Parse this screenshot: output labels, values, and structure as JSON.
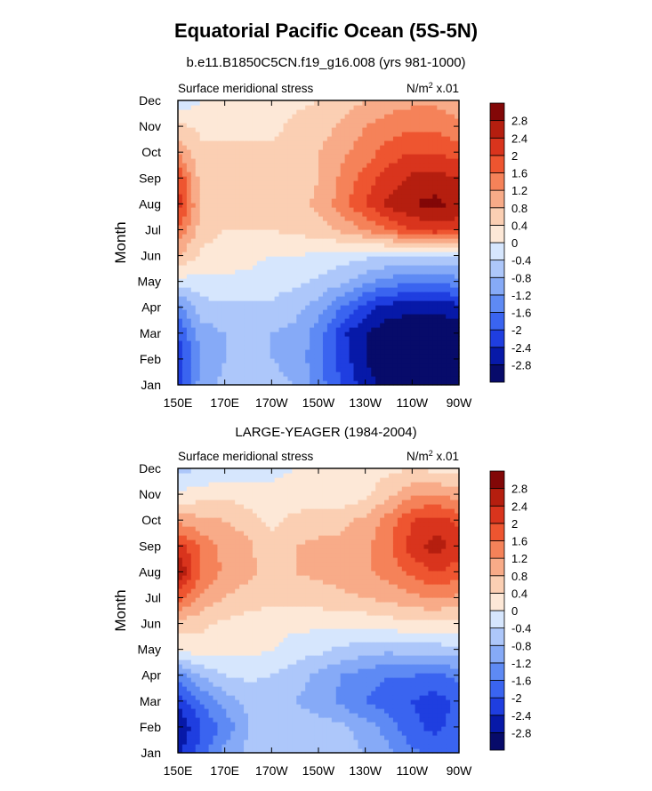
{
  "title": "Equatorial Pacific Ocean (5S-5N)",
  "chart_data": {
    "type": "heatmap",
    "ylabel": "Month",
    "x_tick_labels": [
      "150E",
      "170E",
      "170W",
      "150W",
      "130W",
      "110W",
      "90W"
    ],
    "y_tick_labels": [
      "Jan",
      "Feb",
      "Mar",
      "Apr",
      "May",
      "Jun",
      "Jul",
      "Aug",
      "Sep",
      "Oct",
      "Nov",
      "Dec"
    ],
    "variable": "Surface meridional stress",
    "units_prefix": "N/m",
    "units_exp": "2",
    "units_suffix": " x.01",
    "colorbar": {
      "levels": [
        "-2.8",
        "-2.4",
        "-2",
        "-1.6",
        "-1.2",
        "-0.8",
        "-0.4",
        "0",
        "0.4",
        "0.8",
        "1.2",
        "1.6",
        "2",
        "2.4",
        "2.8"
      ],
      "colors": [
        "#070b6a",
        "#0719a8",
        "#1f3ee0",
        "#3a64f0",
        "#5e8af4",
        "#86aaf7",
        "#adc7fa",
        "#d6e6fd",
        "#fde8d7",
        "#fbcfb3",
        "#f8ab88",
        "#f58259",
        "#ee5530",
        "#d9341d",
        "#b51e0f",
        "#820707"
      ]
    },
    "panels": [
      {
        "name": "b.e11.B1850C5CN.f19_g16.008 (yrs 981-1000)",
        "lon": [
          "150E",
          "160E",
          "170E",
          "180",
          "170W",
          "160W",
          "150W",
          "140W",
          "130W",
          "120W",
          "110W",
          "100W",
          "90W"
        ],
        "months": [
          "Jan",
          "Feb",
          "Mar",
          "Apr",
          "May",
          "Jun",
          "Jul",
          "Aug",
          "Sep",
          "Oct",
          "Nov",
          "Dec"
        ],
        "values": [
          [
            -2.2,
            -1.0,
            -0.7,
            -0.7,
            -0.7,
            -0.8,
            -1.4,
            -2.0,
            -2.6,
            -3.0,
            -3.1,
            -3.1,
            -3.0
          ],
          [
            -2.3,
            -1.1,
            -0.8,
            -0.8,
            -0.8,
            -0.9,
            -1.5,
            -2.2,
            -2.8,
            -3.1,
            -3.2,
            -3.2,
            -3.1
          ],
          [
            -2.0,
            -1.0,
            -0.8,
            -0.8,
            -0.8,
            -0.9,
            -1.4,
            -2.3,
            -2.8,
            -3.1,
            -3.1,
            -3.1,
            -3.0
          ],
          [
            -1.4,
            -0.6,
            -0.5,
            -0.5,
            -0.5,
            -0.7,
            -1.0,
            -1.6,
            -2.2,
            -2.6,
            -2.7,
            -2.7,
            -2.6
          ],
          [
            -0.2,
            -0.1,
            -0.1,
            -0.1,
            -0.2,
            -0.3,
            -0.5,
            -0.7,
            -1.1,
            -1.4,
            -1.5,
            -1.5,
            -1.4
          ],
          [
            0.8,
            0.3,
            0.2,
            0.1,
            0.0,
            0.0,
            -0.1,
            -0.2,
            -0.3,
            -0.4,
            -0.5,
            -0.5,
            -0.4
          ],
          [
            1.6,
            0.6,
            0.4,
            0.4,
            0.4,
            0.5,
            0.6,
            0.9,
            1.2,
            1.6,
            2.0,
            2.2,
            2.1
          ],
          [
            2.2,
            0.7,
            0.5,
            0.5,
            0.5,
            0.6,
            0.9,
            1.4,
            2.0,
            2.5,
            2.8,
            2.9,
            2.7
          ],
          [
            2.0,
            0.6,
            0.5,
            0.5,
            0.5,
            0.6,
            0.8,
            1.3,
            1.8,
            2.2,
            2.5,
            2.6,
            2.4
          ],
          [
            1.2,
            0.5,
            0.5,
            0.5,
            0.5,
            0.6,
            0.8,
            1.1,
            1.4,
            1.8,
            2.0,
            2.0,
            1.8
          ],
          [
            0.5,
            0.3,
            0.3,
            0.3,
            0.3,
            0.5,
            0.6,
            0.9,
            1.2,
            1.4,
            1.5,
            1.5,
            1.3
          ],
          [
            -0.3,
            0.0,
            0.1,
            0.2,
            0.2,
            0.3,
            0.4,
            0.6,
            0.8,
            1.0,
            1.1,
            1.1,
            1.0
          ]
        ]
      },
      {
        "name": "LARGE-YEAGER (1984-2004)",
        "lon": [
          "150E",
          "160E",
          "170E",
          "180",
          "170W",
          "160W",
          "150W",
          "140W",
          "130W",
          "120W",
          "110W",
          "100W",
          "90W"
        ],
        "months": [
          "Jan",
          "Feb",
          "Mar",
          "Apr",
          "May",
          "Jun",
          "Jul",
          "Aug",
          "Sep",
          "Oct",
          "Nov",
          "Dec"
        ],
        "values": [
          [
            -2.5,
            -1.8,
            -1.0,
            -0.7,
            -0.6,
            -0.6,
            -0.6,
            -0.6,
            -0.8,
            -1.1,
            -1.5,
            -1.8,
            -1.6
          ],
          [
            -2.8,
            -2.0,
            -1.5,
            -0.8,
            -0.6,
            -0.6,
            -0.6,
            -0.7,
            -1.0,
            -1.4,
            -1.9,
            -2.1,
            -1.8
          ],
          [
            -2.3,
            -1.6,
            -1.0,
            -0.7,
            -0.7,
            -0.8,
            -1.0,
            -1.3,
            -1.6,
            -1.8,
            -2.0,
            -2.2,
            -1.9
          ],
          [
            -1.4,
            -0.8,
            -0.4,
            -0.3,
            -0.4,
            -0.6,
            -0.9,
            -1.2,
            -1.4,
            -1.6,
            -1.6,
            -1.7,
            -1.5
          ],
          [
            0.1,
            0.2,
            0.1,
            0.1,
            0.0,
            -0.2,
            -0.3,
            -0.5,
            -0.6,
            -0.7,
            -0.6,
            -0.6,
            -0.5
          ],
          [
            0.6,
            0.5,
            0.3,
            0.2,
            0.2,
            0.1,
            0.1,
            0.1,
            0.1,
            0.2,
            0.3,
            0.3,
            0.2
          ],
          [
            1.8,
            1.1,
            0.8,
            0.6,
            0.5,
            0.5,
            0.6,
            0.7,
            0.8,
            0.9,
            1.1,
            1.2,
            1.1
          ],
          [
            2.8,
            1.6,
            1.1,
            0.9,
            0.6,
            0.8,
            0.9,
            1.0,
            1.1,
            1.4,
            1.7,
            2.0,
            1.8
          ],
          [
            2.2,
            1.5,
            1.1,
            0.9,
            0.5,
            0.8,
            0.9,
            0.9,
            1.1,
            1.5,
            2.2,
            2.6,
            2.2
          ],
          [
            1.1,
            0.9,
            0.8,
            0.6,
            0.3,
            0.5,
            0.6,
            0.7,
            0.9,
            1.4,
            2.0,
            2.2,
            1.9
          ],
          [
            0.1,
            0.2,
            0.3,
            0.2,
            0.1,
            0.2,
            0.2,
            0.1,
            0.3,
            0.7,
            1.1,
            1.2,
            1.0
          ],
          [
            -0.5,
            -0.4,
            -0.3,
            -0.2,
            -0.1,
            0.0,
            0.1,
            0.1,
            0.2,
            0.3,
            0.4,
            0.3,
            0.2
          ]
        ]
      }
    ]
  }
}
